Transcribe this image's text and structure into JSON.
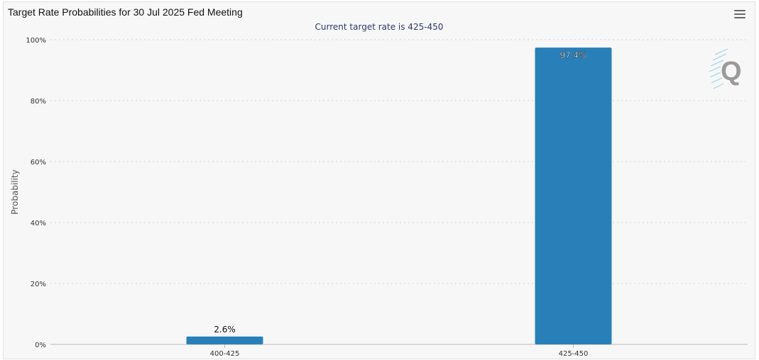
{
  "title": "Target Rate Probabilities for 30 Jul 2025 Fed Meeting",
  "subtitle": "Current target rate is 425-450",
  "menu_icon": "hamburger-menu-icon",
  "watermark_icon": "q-logo-icon",
  "colors": {
    "bar": "#2980b9",
    "grid": "#d0d0d0",
    "axis_text": "#333333",
    "subtitle": "#2b3a67"
  },
  "chart_data": {
    "type": "bar",
    "categories": [
      "400-425",
      "425-450"
    ],
    "values": [
      2.6,
      97.4
    ],
    "data_labels": [
      "2.6%",
      "97.4%"
    ],
    "ylabel": "Probability",
    "ylim": [
      0,
      100
    ],
    "yticks": [
      "0%",
      "20%",
      "40%",
      "60%",
      "80%",
      "100%"
    ],
    "ytick_values": [
      0,
      20,
      40,
      60,
      80,
      100
    ],
    "grid": true,
    "legend": "none"
  }
}
